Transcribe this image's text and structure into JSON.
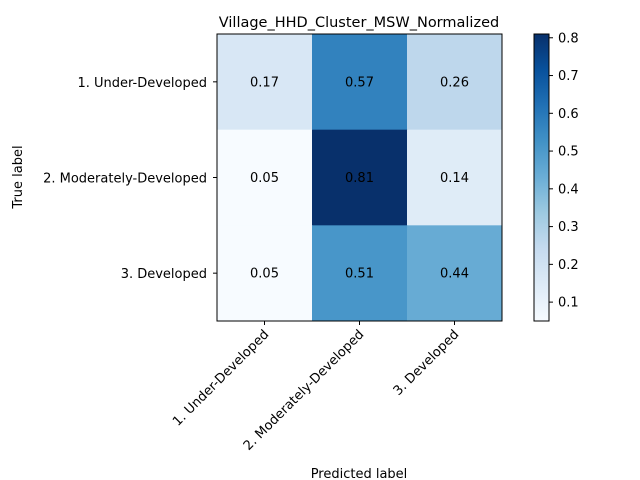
{
  "chart_data": {
    "type": "heatmap",
    "title": "Village_HHD_Cluster_MSW_Normalized",
    "xlabel": "Predicted label",
    "ylabel": "True label",
    "x_categories": [
      "1. Under-Developed",
      "2. Moderately-Developed",
      "3. Developed"
    ],
    "y_categories": [
      "1. Under-Developed",
      "2. Moderately-Developed",
      "3. Developed"
    ],
    "values": [
      [
        0.17,
        0.57,
        0.26
      ],
      [
        0.05,
        0.81,
        0.14
      ],
      [
        0.05,
        0.51,
        0.44
      ]
    ],
    "value_labels": [
      [
        "0.17",
        "0.57",
        "0.26"
      ],
      [
        "0.05",
        "0.81",
        "0.14"
      ],
      [
        "0.05",
        "0.51",
        "0.44"
      ]
    ],
    "colormap": "Blues",
    "colorbar": {
      "range": [
        0.05,
        0.81
      ],
      "ticks": [
        0.1,
        0.2,
        0.3,
        0.4,
        0.5,
        0.6,
        0.7,
        0.8
      ],
      "tick_labels": [
        "0.1",
        "0.2",
        "0.3",
        "0.4",
        "0.5",
        "0.6",
        "0.7",
        "0.8"
      ]
    },
    "grid": false,
    "legend": "colorbar-right"
  }
}
